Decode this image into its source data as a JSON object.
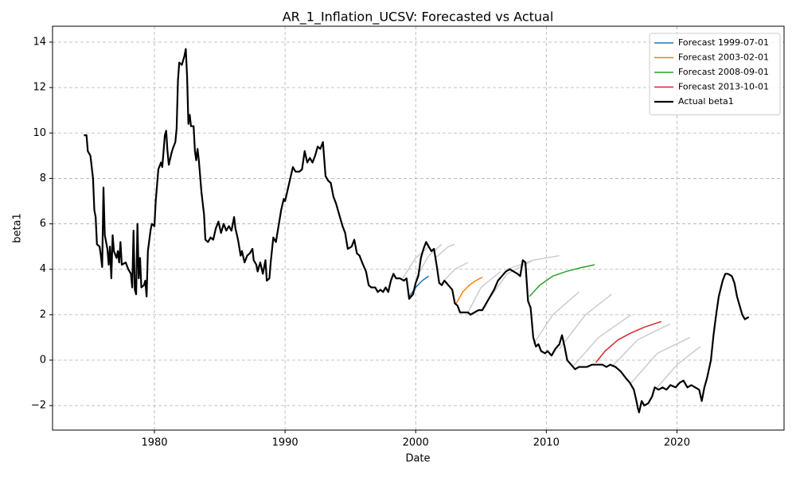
{
  "chart_data": {
    "type": "line",
    "title": "AR_1_Inflation_UCSV: Forecasted vs Actual",
    "x_label": "Date",
    "y_label": "beta1",
    "xlim": [
      1972.2,
      2028.2
    ],
    "ylim": [
      -3.08,
      14.7
    ],
    "xticks": [
      1980,
      1990,
      2000,
      2010,
      2020
    ],
    "yticks": [
      {
        "value": -2,
        "label": "−2"
      },
      0,
      2,
      4,
      6,
      8,
      10,
      12,
      14
    ],
    "grid": true,
    "legend": "upper right",
    "series": [
      {
        "color": "#cccccc",
        "x": [
          1999.0,
          2000.0,
          2001.0
        ],
        "values": [
          3.6,
          4.5,
          5.0
        ]
      },
      {
        "color": "#cccccc",
        "x": [
          2000.0,
          2001.0,
          2002.0
        ],
        "values": [
          3.6,
          4.6,
          5.1
        ]
      },
      {
        "color": "#cccccc",
        "x": [
          2001.5,
          2002.5,
          2003.0
        ],
        "values": [
          4.5,
          5.0,
          5.1
        ]
      },
      {
        "color": "#cccccc",
        "x": [
          2002.0,
          2003.0,
          2004.0
        ],
        "values": [
          3.4,
          4.0,
          4.3
        ]
      },
      {
        "color": "#cccccc",
        "x": [
          2004.0,
          2005.0,
          2006.5
        ],
        "values": [
          2.1,
          3.2,
          3.9
        ]
      },
      {
        "color": "#cccccc",
        "x": [
          2005.5,
          2007.0,
          2009.0
        ],
        "values": [
          2.6,
          3.8,
          4.4
        ]
      },
      {
        "color": "#cccccc",
        "x": [
          2007.0,
          2009.0,
          2011.0
        ],
        "values": [
          4.0,
          4.4,
          4.6
        ]
      },
      {
        "color": "#cccccc",
        "x": [
          2009.0,
          2010.5,
          2012.5
        ],
        "values": [
          0.7,
          2.0,
          3.0
        ]
      },
      {
        "color": "#cccccc",
        "x": [
          2011.0,
          2013.0,
          2015.0
        ],
        "values": [
          0.5,
          2.0,
          2.9
        ]
      },
      {
        "color": "#cccccc",
        "x": [
          2012.0,
          2014.0,
          2016.5
        ],
        "values": [
          -0.3,
          1.0,
          2.0
        ]
      },
      {
        "color": "#cccccc",
        "x": [
          2015.0,
          2017.0,
          2019.5
        ],
        "values": [
          -0.3,
          0.9,
          1.6
        ]
      },
      {
        "color": "#cccccc",
        "x": [
          2016.5,
          2018.5,
          2021.0
        ],
        "values": [
          -1.0,
          0.3,
          1.0
        ]
      },
      {
        "color": "#cccccc",
        "x": [
          2018.5,
          2020.0,
          2021.8
        ],
        "values": [
          -1.2,
          -0.2,
          0.6
        ]
      },
      {
        "name": "Forecast 1999-07-01",
        "color": "#1f77b4",
        "x": [
          1999.5,
          2000.0,
          2000.5,
          2001.0
        ],
        "values": [
          2.8,
          3.2,
          3.5,
          3.7
        ]
      },
      {
        "name": "Forecast 2003-02-01",
        "color": "#ff7f0e",
        "x": [
          2003.1,
          2003.6,
          2004.1,
          2004.6,
          2005.1
        ],
        "values": [
          2.5,
          3.0,
          3.3,
          3.5,
          3.65
        ]
      },
      {
        "name": "Forecast 2008-09-01",
        "color": "#2ca02c",
        "x": [
          2008.7,
          2009.5,
          2010.5,
          2011.5,
          2012.5,
          2013.7
        ],
        "values": [
          2.8,
          3.3,
          3.7,
          3.9,
          4.05,
          4.2
        ]
      },
      {
        "name": "Forecast 2013-10-01",
        "color": "#d62728",
        "x": [
          2013.8,
          2014.5,
          2015.5,
          2016.5,
          2017.5,
          2018.8
        ],
        "values": [
          -0.1,
          0.4,
          0.9,
          1.2,
          1.45,
          1.7
        ]
      },
      {
        "name": "Actual beta1",
        "color": "#000000",
        "x": [
          1974.6,
          1974.8,
          1974.9,
          1975.1,
          1975.3,
          1975.4,
          1975.5,
          1975.6,
          1975.8,
          1975.9,
          1976.0,
          1976.1,
          1976.2,
          1976.4,
          1976.5,
          1976.6,
          1976.7,
          1976.8,
          1976.9,
          1977.1,
          1977.2,
          1977.3,
          1977.4,
          1977.5,
          1977.8,
          1978.0,
          1978.2,
          1978.3,
          1978.4,
          1978.5,
          1978.6,
          1978.7,
          1978.8,
          1978.9,
          1979.0,
          1979.2,
          1979.3,
          1979.4,
          1979.5,
          1979.7,
          1979.8,
          1980.0,
          1980.1,
          1980.3,
          1980.5,
          1980.6,
          1980.8,
          1980.9,
          1981.0,
          1981.1,
          1981.3,
          1981.4,
          1981.6,
          1981.7,
          1981.8,
          1981.9,
          1982.1,
          1982.3,
          1982.4,
          1982.5,
          1982.6,
          1982.7,
          1982.8,
          1983.0,
          1983.1,
          1983.2,
          1983.3,
          1983.4,
          1983.6,
          1983.8,
          1983.9,
          1984.1,
          1984.3,
          1984.5,
          1984.7,
          1984.9,
          1985.1,
          1985.3,
          1985.5,
          1985.7,
          1985.9,
          1986.1,
          1986.2,
          1986.4,
          1986.6,
          1986.7,
          1986.9,
          1987.1,
          1987.3,
          1987.5,
          1987.6,
          1987.8,
          1987.9,
          1988.1,
          1988.3,
          1988.5,
          1988.6,
          1988.8,
          1988.9,
          1989.1,
          1989.3,
          1989.5,
          1989.7,
          1989.9,
          1990.0,
          1990.2,
          1990.4,
          1990.6,
          1990.8,
          1991.1,
          1991.3,
          1991.5,
          1991.7,
          1991.9,
          1992.1,
          1992.3,
          1992.5,
          1992.7,
          1992.9,
          1993.1,
          1993.3,
          1993.5,
          1993.7,
          1993.9,
          1994.1,
          1994.4,
          1994.6,
          1994.8,
          1995.1,
          1995.3,
          1995.5,
          1995.7,
          1995.9,
          1996.2,
          1996.4,
          1996.6,
          1996.9,
          1997.1,
          1997.3,
          1997.5,
          1997.7,
          1997.9,
          1998.1,
          1998.3,
          1998.5,
          1998.8,
          1999.1,
          1999.3,
          1999.5,
          1999.8,
          2000.0,
          2000.2,
          2000.4,
          2000.6,
          2000.8,
          2001.0,
          2001.2,
          2001.4,
          2001.6,
          2001.8,
          2002.0,
          2002.2,
          2002.5,
          2002.8,
          2003.0,
          2003.2,
          2003.4,
          2003.7,
          2004.0,
          2004.2,
          2004.5,
          2004.8,
          2005.1,
          2005.4,
          2005.7,
          2006.0,
          2006.3,
          2006.6,
          2006.9,
          2007.2,
          2007.5,
          2007.8,
          2008.0,
          2008.2,
          2008.4,
          2008.6,
          2008.8,
          2009.0,
          2009.2,
          2009.4,
          2009.6,
          2009.9,
          2010.1,
          2010.4,
          2010.7,
          2011.0,
          2011.2,
          2011.4,
          2011.6,
          2011.9,
          2012.2,
          2012.5,
          2012.8,
          2013.1,
          2013.5,
          2013.9,
          2014.3,
          2014.6,
          2014.9,
          2015.3,
          2015.7,
          2016.1,
          2016.4,
          2016.7,
          2016.9,
          2017.0,
          2017.1,
          2017.3,
          2017.5,
          2017.8,
          2018.1,
          2018.3,
          2018.6,
          2018.9,
          2019.2,
          2019.5,
          2019.9,
          2020.2,
          2020.5,
          2020.8,
          2021.1,
          2021.4,
          2021.7,
          2021.9,
          2022.1,
          2022.3,
          2022.6,
          2022.8,
          2023.0,
          2023.2,
          2023.5,
          2023.7,
          2023.9,
          2024.2,
          2024.4,
          2024.6,
          2024.8,
          2025.0,
          2025.2,
          2025.5
        ],
        "values": [
          9.9,
          9.9,
          9.2,
          9.0,
          8.0,
          6.6,
          6.3,
          5.1,
          5.0,
          4.6,
          4.1,
          7.6,
          5.5,
          4.9,
          4.2,
          5.0,
          3.6,
          5.5,
          4.8,
          4.5,
          4.8,
          4.3,
          5.2,
          4.2,
          4.3,
          4.0,
          3.8,
          3.2,
          5.7,
          3.1,
          2.9,
          6.0,
          3.6,
          4.5,
          3.2,
          3.3,
          3.5,
          2.8,
          4.8,
          5.7,
          6.0,
          5.9,
          7.0,
          8.4,
          8.7,
          8.5,
          9.9,
          10.1,
          9.2,
          8.6,
          9.1,
          9.3,
          9.6,
          10.2,
          12.3,
          13.1,
          13.0,
          13.4,
          13.7,
          12.5,
          10.4,
          10.8,
          10.3,
          10.3,
          9.2,
          8.8,
          9.3,
          8.8,
          7.4,
          6.4,
          5.3,
          5.2,
          5.4,
          5.3,
          5.8,
          6.1,
          5.6,
          6.0,
          5.7,
          5.9,
          5.7,
          6.3,
          5.8,
          5.3,
          4.6,
          4.8,
          4.3,
          4.6,
          4.7,
          4.9,
          4.4,
          4.2,
          3.9,
          4.3,
          3.8,
          4.4,
          3.5,
          3.6,
          4.3,
          5.4,
          5.2,
          5.9,
          6.6,
          7.1,
          7.0,
          7.5,
          8.0,
          8.5,
          8.3,
          8.3,
          8.4,
          9.2,
          8.7,
          8.9,
          8.7,
          9.0,
          9.4,
          9.3,
          9.6,
          8.1,
          7.9,
          7.8,
          7.2,
          6.9,
          6.5,
          5.9,
          5.6,
          4.9,
          5.0,
          5.3,
          4.7,
          4.6,
          4.3,
          3.9,
          3.3,
          3.2,
          3.2,
          3.0,
          3.1,
          3.0,
          3.2,
          3.0,
          3.5,
          3.8,
          3.6,
          3.6,
          3.5,
          3.6,
          2.7,
          2.9,
          3.4,
          3.7,
          4.5,
          4.9,
          5.2,
          5.0,
          4.8,
          4.9,
          4.2,
          3.4,
          3.3,
          3.5,
          3.3,
          3.1,
          2.5,
          2.4,
          2.1,
          2.1,
          2.1,
          2.0,
          2.1,
          2.2,
          2.2,
          2.5,
          2.8,
          3.1,
          3.5,
          3.7,
          3.9,
          4.0,
          3.9,
          3.8,
          3.7,
          4.4,
          4.3,
          2.6,
          2.3,
          1.0,
          0.6,
          0.7,
          0.4,
          0.3,
          0.4,
          0.2,
          0.5,
          0.7,
          1.1,
          0.6,
          0.0,
          -0.2,
          -0.4,
          -0.3,
          -0.3,
          -0.3,
          -0.2,
          -0.2,
          -0.2,
          -0.3,
          -0.2,
          -0.3,
          -0.5,
          -0.8,
          -1.0,
          -1.3,
          -1.8,
          -2.1,
          -2.3,
          -1.8,
          -2.0,
          -1.9,
          -1.6,
          -1.2,
          -1.3,
          -1.2,
          -1.3,
          -1.1,
          -1.2,
          -1.0,
          -0.9,
          -1.2,
          -1.1,
          -1.2,
          -1.3,
          -1.8,
          -1.2,
          -0.8,
          0.0,
          1.1,
          2.0,
          2.8,
          3.5,
          3.8,
          3.8,
          3.7,
          3.4,
          2.8,
          2.4,
          2.0,
          1.8,
          1.9
        ]
      }
    ]
  }
}
